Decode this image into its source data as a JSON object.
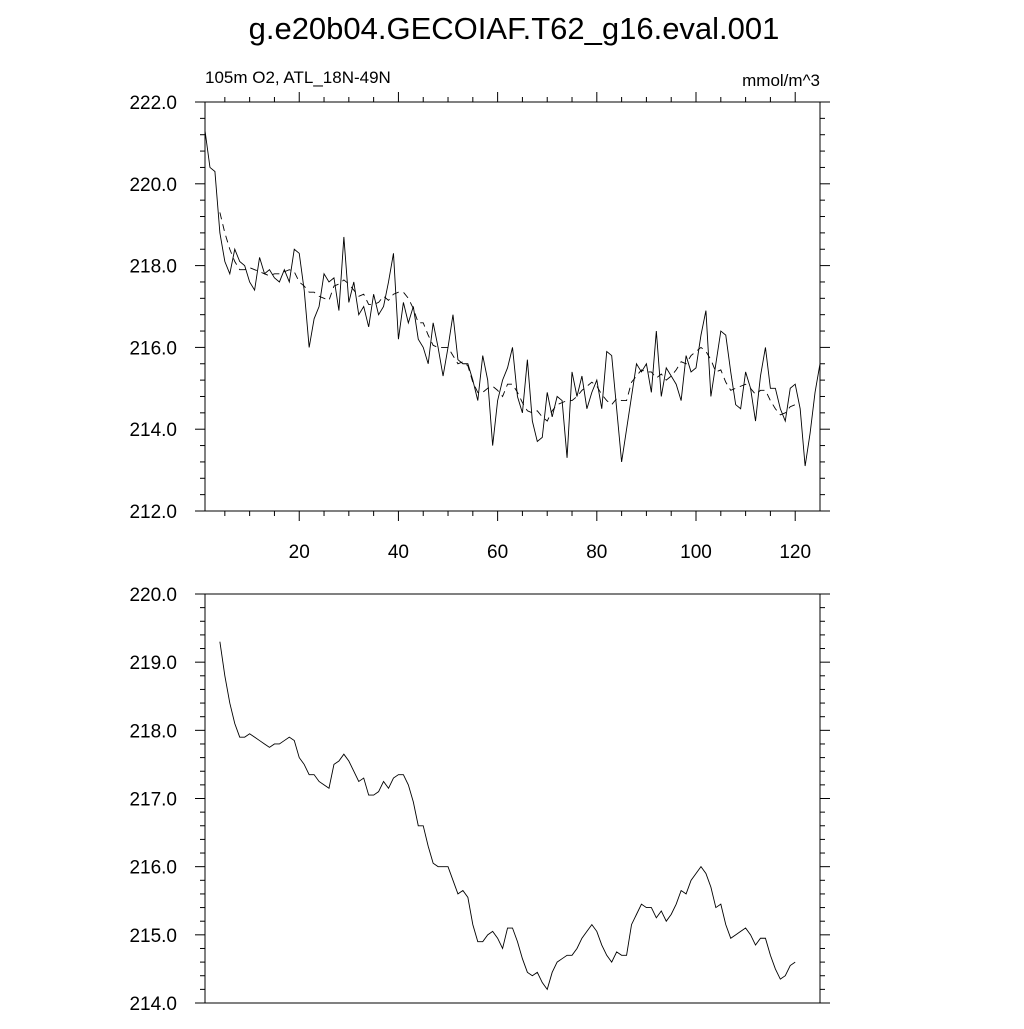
{
  "title": "g.e20b04.GECOIAF.T62_g16.eval.001",
  "chart_data": [
    {
      "type": "line",
      "subtitle_left": "105m O2, ATL_18N-49N",
      "subtitle_right": "mmol/m^3",
      "xlim": [
        1,
        125
      ],
      "ylim": [
        212,
        222
      ],
      "xticks": [
        20,
        40,
        60,
        80,
        100,
        120
      ],
      "yticks": [
        {
          "value": 212,
          "label": "212.0"
        },
        {
          "value": 214,
          "label": "214.0"
        },
        {
          "value": 216,
          "label": "216.0"
        },
        {
          "value": 218,
          "label": "218.0"
        },
        {
          "value": 220,
          "label": "220.0"
        },
        {
          "value": 222,
          "label": "222.0"
        }
      ],
      "series": [
        {
          "color": "#000000",
          "dash": false,
          "x": [
            1,
            2,
            3,
            4,
            5,
            6,
            7,
            8,
            9,
            10,
            11,
            12,
            13,
            14,
            15,
            16,
            17,
            18,
            19,
            20,
            21,
            22,
            23,
            24,
            25,
            26,
            27,
            28,
            29,
            30,
            31,
            32,
            33,
            34,
            35,
            36,
            37,
            38,
            39,
            40,
            41,
            42,
            43,
            44,
            45,
            46,
            47,
            48,
            49,
            50,
            51,
            52,
            53,
            54,
            55,
            56,
            57,
            58,
            59,
            60,
            61,
            62,
            63,
            64,
            65,
            66,
            67,
            68,
            69,
            70,
            71,
            72,
            73,
            74,
            75,
            76,
            77,
            78,
            79,
            80,
            81,
            82,
            83,
            84,
            85,
            86,
            87,
            88,
            89,
            90,
            91,
            92,
            93,
            94,
            95,
            96,
            97,
            98,
            99,
            100,
            101,
            102,
            103,
            104,
            105,
            106,
            107,
            108,
            109,
            110,
            111,
            112,
            113,
            114,
            115,
            116,
            117,
            118,
            119,
            120,
            121,
            122,
            123,
            124,
            125
          ],
          "values": [
            221.3,
            220.4,
            220.3,
            218.8,
            218.1,
            217.8,
            218.4,
            218.1,
            218.0,
            217.6,
            217.4,
            218.2,
            217.8,
            217.9,
            217.7,
            217.6,
            217.9,
            217.6,
            218.4,
            218.3,
            217.4,
            216.0,
            216.7,
            217.0,
            217.8,
            217.6,
            217.7,
            216.9,
            218.7,
            217.1,
            217.6,
            216.8,
            217.0,
            216.5,
            217.3,
            216.8,
            217.0,
            217.6,
            218.3,
            216.2,
            217.1,
            216.6,
            217.0,
            216.2,
            216.0,
            215.6,
            216.6,
            216.0,
            215.3,
            216.0,
            216.8,
            215.7,
            215.6,
            215.6,
            215.2,
            214.7,
            215.8,
            215.2,
            213.6,
            214.7,
            215.2,
            215.5,
            216.0,
            214.8,
            214.4,
            215.7,
            214.2,
            213.7,
            213.8,
            214.9,
            214.3,
            214.8,
            214.7,
            213.3,
            215.4,
            214.8,
            215.3,
            214.5,
            214.9,
            215.2,
            214.5,
            215.9,
            215.8,
            214.5,
            213.2,
            214.0,
            214.8,
            215.6,
            215.4,
            215.6,
            214.9,
            216.4,
            214.8,
            215.5,
            215.3,
            215.1,
            214.7,
            215.8,
            215.4,
            215.5,
            216.3,
            216.9,
            214.8,
            215.6,
            216.4,
            216.3,
            215.4,
            214.6,
            214.5,
            215.4,
            215.0,
            214.2,
            215.3,
            216.0,
            215.0,
            215.0,
            214.5,
            214.2,
            215.0,
            215.1,
            214.5,
            213.1,
            213.9,
            214.9,
            215.6
          ]
        },
        {
          "color": "#000000",
          "dash": true,
          "x": [
            4,
            5,
            6,
            7,
            8,
            9,
            10,
            11,
            12,
            13,
            14,
            15,
            16,
            17,
            18,
            19,
            20,
            21,
            22,
            23,
            24,
            25,
            26,
            27,
            28,
            29,
            30,
            31,
            32,
            33,
            34,
            35,
            36,
            37,
            38,
            39,
            40,
            41,
            42,
            43,
            44,
            45,
            46,
            47,
            48,
            49,
            50,
            51,
            52,
            53,
            54,
            55,
            56,
            57,
            58,
            59,
            60,
            61,
            62,
            63,
            64,
            65,
            66,
            67,
            68,
            69,
            70,
            71,
            72,
            73,
            74,
            75,
            76,
            77,
            78,
            79,
            80,
            81,
            82,
            83,
            84,
            85,
            86,
            87,
            88,
            89,
            90,
            91,
            92,
            93,
            94,
            95,
            96,
            97,
            98,
            99,
            100,
            101,
            102,
            103,
            104,
            105,
            106,
            107,
            108,
            109,
            110,
            111,
            112,
            113,
            114,
            115,
            116,
            117,
            118,
            119,
            120
          ],
          "values": [
            219.3,
            218.8,
            218.4,
            218.1,
            217.9,
            217.9,
            217.95,
            217.9,
            217.85,
            217.8,
            217.75,
            217.8,
            217.8,
            217.85,
            217.9,
            217.85,
            217.6,
            217.5,
            217.35,
            217.35,
            217.25,
            217.2,
            217.15,
            217.5,
            217.55,
            217.65,
            217.55,
            217.4,
            217.25,
            217.3,
            217.05,
            217.05,
            217.1,
            217.25,
            217.15,
            217.3,
            217.35,
            217.35,
            217.2,
            216.95,
            216.6,
            216.6,
            216.3,
            216.05,
            216.0,
            216.0,
            216.0,
            215.8,
            215.6,
            215.65,
            215.55,
            215.15,
            214.9,
            214.9,
            215.0,
            215.05,
            214.95,
            214.8,
            215.1,
            215.1,
            214.9,
            214.65,
            214.45,
            214.4,
            214.45,
            214.3,
            214.2,
            214.45,
            214.6,
            214.65,
            214.7,
            214.7,
            214.8,
            214.95,
            215.05,
            215.15,
            215.05,
            214.85,
            214.7,
            214.6,
            214.75,
            214.7,
            214.7,
            215.15,
            215.3,
            215.45,
            215.4,
            215.4,
            215.25,
            215.35,
            215.2,
            215.3,
            215.45,
            215.65,
            215.6,
            215.8,
            215.9,
            216.0,
            215.9,
            215.7,
            215.4,
            215.45,
            215.15,
            214.95,
            215.0,
            215.05,
            215.1,
            215.0,
            214.85,
            214.95,
            214.95,
            214.7,
            214.5,
            214.35,
            214.4,
            214.55,
            214.6
          ]
        }
      ]
    },
    {
      "type": "line",
      "xlim": [
        1,
        125
      ],
      "ylim": [
        214,
        220
      ],
      "yticks": [
        {
          "value": 214,
          "label": "214.0"
        },
        {
          "value": 215,
          "label": "215.0"
        },
        {
          "value": 216,
          "label": "216.0"
        },
        {
          "value": 217,
          "label": "217.0"
        },
        {
          "value": 218,
          "label": "218.0"
        },
        {
          "value": 219,
          "label": "219.0"
        },
        {
          "value": 220,
          "label": "220.0"
        }
      ],
      "series": [
        {
          "color": "#000000",
          "dash": false,
          "x": [
            4,
            5,
            6,
            7,
            8,
            9,
            10,
            11,
            12,
            13,
            14,
            15,
            16,
            17,
            18,
            19,
            20,
            21,
            22,
            23,
            24,
            25,
            26,
            27,
            28,
            29,
            30,
            31,
            32,
            33,
            34,
            35,
            36,
            37,
            38,
            39,
            40,
            41,
            42,
            43,
            44,
            45,
            46,
            47,
            48,
            49,
            50,
            51,
            52,
            53,
            54,
            55,
            56,
            57,
            58,
            59,
            60,
            61,
            62,
            63,
            64,
            65,
            66,
            67,
            68,
            69,
            70,
            71,
            72,
            73,
            74,
            75,
            76,
            77,
            78,
            79,
            80,
            81,
            82,
            83,
            84,
            85,
            86,
            87,
            88,
            89,
            90,
            91,
            92,
            93,
            94,
            95,
            96,
            97,
            98,
            99,
            100,
            101,
            102,
            103,
            104,
            105,
            106,
            107,
            108,
            109,
            110,
            111,
            112,
            113,
            114,
            115,
            116,
            117,
            118,
            119,
            120
          ],
          "values": [
            219.3,
            218.8,
            218.4,
            218.1,
            217.9,
            217.9,
            217.95,
            217.9,
            217.85,
            217.8,
            217.75,
            217.8,
            217.8,
            217.85,
            217.9,
            217.85,
            217.6,
            217.5,
            217.35,
            217.35,
            217.25,
            217.2,
            217.15,
            217.5,
            217.55,
            217.65,
            217.55,
            217.4,
            217.25,
            217.3,
            217.05,
            217.05,
            217.1,
            217.25,
            217.15,
            217.3,
            217.35,
            217.35,
            217.2,
            216.95,
            216.6,
            216.6,
            216.3,
            216.05,
            216.0,
            216.0,
            216.0,
            215.8,
            215.6,
            215.65,
            215.55,
            215.15,
            214.9,
            214.9,
            215.0,
            215.05,
            214.95,
            214.8,
            215.1,
            215.1,
            214.9,
            214.65,
            214.45,
            214.4,
            214.45,
            214.3,
            214.2,
            214.45,
            214.6,
            214.65,
            214.7,
            214.7,
            214.8,
            214.95,
            215.05,
            215.15,
            215.05,
            214.85,
            214.7,
            214.6,
            214.75,
            214.7,
            214.7,
            215.15,
            215.3,
            215.45,
            215.4,
            215.4,
            215.25,
            215.35,
            215.2,
            215.3,
            215.45,
            215.65,
            215.6,
            215.8,
            215.9,
            216.0,
            215.9,
            215.7,
            215.4,
            215.45,
            215.15,
            214.95,
            215.0,
            215.05,
            215.1,
            215.0,
            214.85,
            214.95,
            214.95,
            214.7,
            214.5,
            214.35,
            214.4,
            214.55,
            214.6
          ]
        }
      ]
    }
  ]
}
